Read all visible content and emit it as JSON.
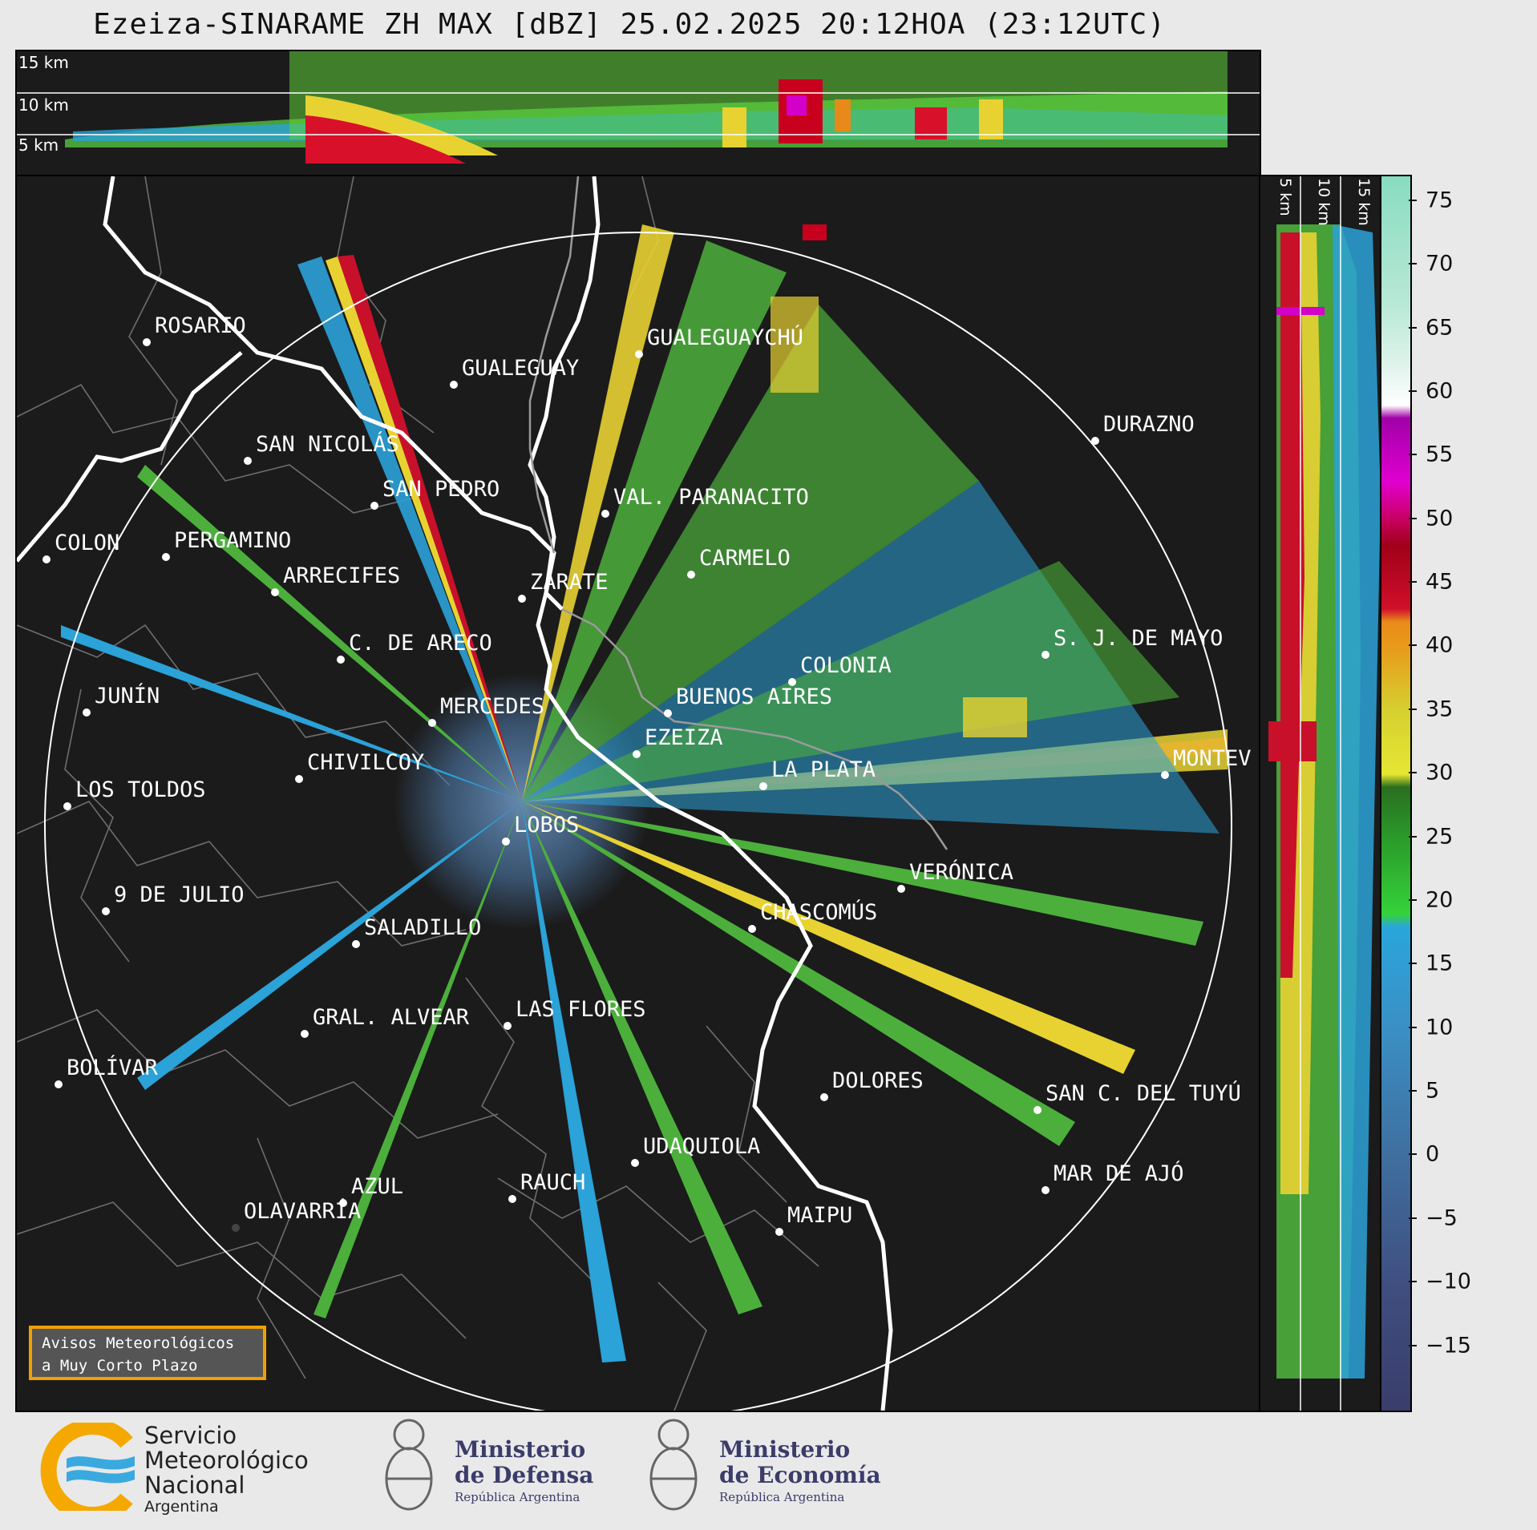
{
  "title": "Ezeiza-SINARAME ZH MAX [dBZ] 25.02.2025 20:12HOA (23:12UTC)",
  "top_panel": {
    "height_labels": [
      "15 km",
      "10 km",
      "5 km"
    ]
  },
  "side_panel": {
    "height_labels": [
      "5 km",
      "10 km",
      "15 km"
    ]
  },
  "colorbar": {
    "unit": "dBZ",
    "ticks": [
      "75",
      "70",
      "65",
      "60",
      "55",
      "50",
      "45",
      "40",
      "35",
      "30",
      "25",
      "20",
      "15",
      "10",
      "5",
      "0",
      "−5",
      "−10",
      "−15"
    ],
    "range": [
      -20,
      77
    ]
  },
  "cities": [
    {
      "name": "ROSARIO"
    },
    {
      "name": "GUALEGUAYCHÚ"
    },
    {
      "name": "GUALEGUAY"
    },
    {
      "name": "SAN NICOLÁS"
    },
    {
      "name": "DURAZNO"
    },
    {
      "name": "SAN PEDRO"
    },
    {
      "name": "VAL. PARANACITO"
    },
    {
      "name": "COLON"
    },
    {
      "name": "PERGAMINO"
    },
    {
      "name": "CARMELO"
    },
    {
      "name": "ARRECIFES"
    },
    {
      "name": "ZÁRATE"
    },
    {
      "name": "S. J. DE MAYO"
    },
    {
      "name": "C. DE ARECO"
    },
    {
      "name": "COLONIA"
    },
    {
      "name": "JUNÍN"
    },
    {
      "name": "BUENOS AIRES"
    },
    {
      "name": "MERCEDES"
    },
    {
      "name": "EZEIZA"
    },
    {
      "name": "MONTEV"
    },
    {
      "name": "CHIVILCOY"
    },
    {
      "name": "LA PLATA"
    },
    {
      "name": "LOS TOLDOS"
    },
    {
      "name": "LOBOS"
    },
    {
      "name": "VERÓNICA"
    },
    {
      "name": "9 DE JULIO"
    },
    {
      "name": "CHASCOMÚS"
    },
    {
      "name": "SALADILLO"
    },
    {
      "name": "GRAL. ALVEAR"
    },
    {
      "name": "LAS FLORES"
    },
    {
      "name": "BOLÍVAR"
    },
    {
      "name": "DOLORES"
    },
    {
      "name": "SAN C. DEL TUYÚ"
    },
    {
      "name": "UDAQUIOLA"
    },
    {
      "name": "MAR DE AJÓ"
    },
    {
      "name": "AZUL"
    },
    {
      "name": "RAUCH"
    },
    {
      "name": "OLAVARRÍA"
    },
    {
      "name": "MAIPU"
    }
  ],
  "avisos": {
    "line1": "Avisos Meteorológicos",
    "line2": "a Muy Corto Plazo"
  },
  "logos": {
    "smn": {
      "line1": "Servicio",
      "line2": "Meteorológico",
      "line3": "Nacional",
      "line4": "Argentina"
    },
    "defensa": {
      "line1": "Ministerio",
      "line2": "de Defensa",
      "line3": "República Argentina"
    },
    "economia": {
      "line1": "Ministerio",
      "line2": "de Economía",
      "line3": "República Argentina"
    }
  }
}
